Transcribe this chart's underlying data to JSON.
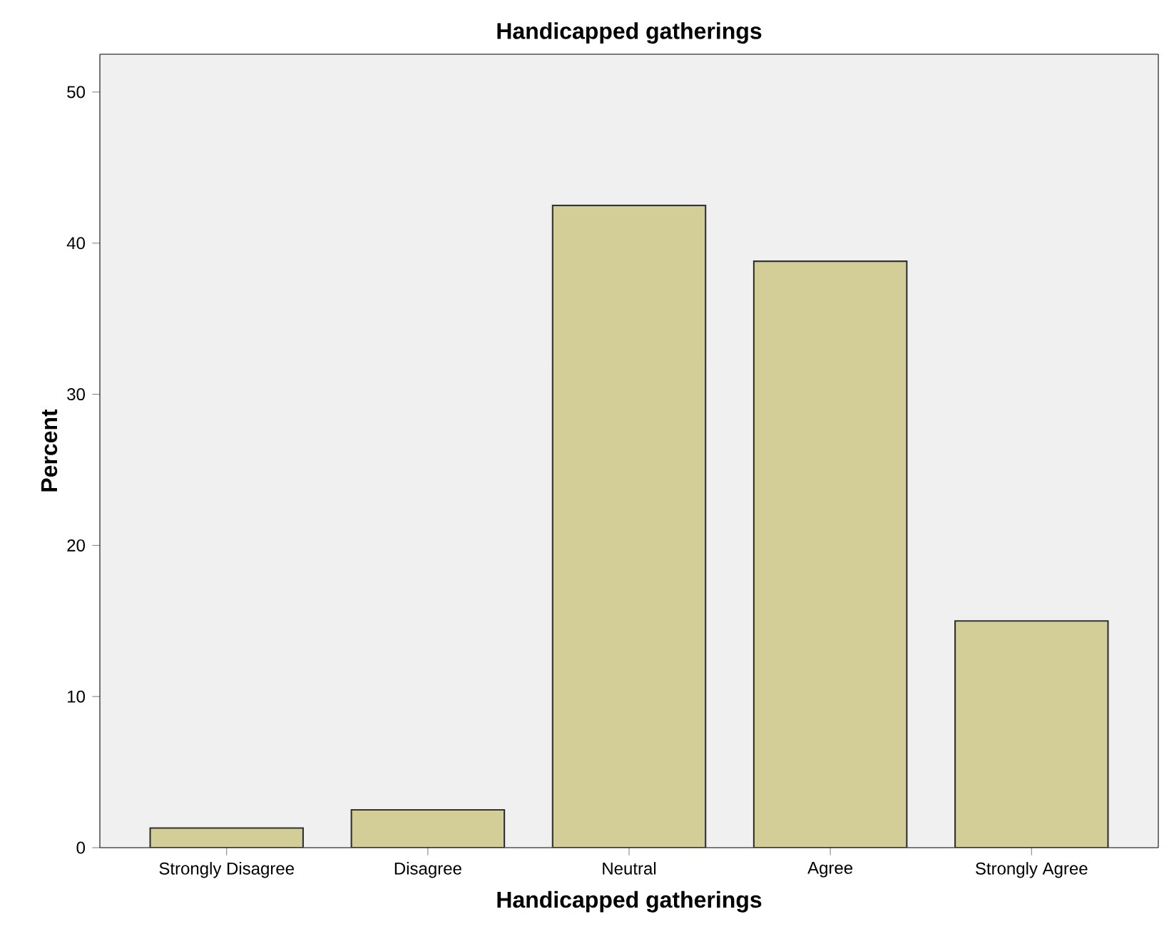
{
  "chart_data": {
    "type": "bar",
    "title": "Handicapped gatherings",
    "xlabel": "Handicapped gatherings",
    "ylabel": "Percent",
    "categories": [
      "Strongly Disagree",
      "Disagree",
      "Neutral",
      "Agree",
      "Strongly Agree"
    ],
    "values": [
      1.3,
      2.5,
      42.5,
      38.8,
      15.0
    ],
    "color": "#d3ce97",
    "ylim": [
      0,
      52.5
    ],
    "yticks": [
      0,
      10,
      20,
      30,
      40,
      50
    ],
    "grid": false
  }
}
